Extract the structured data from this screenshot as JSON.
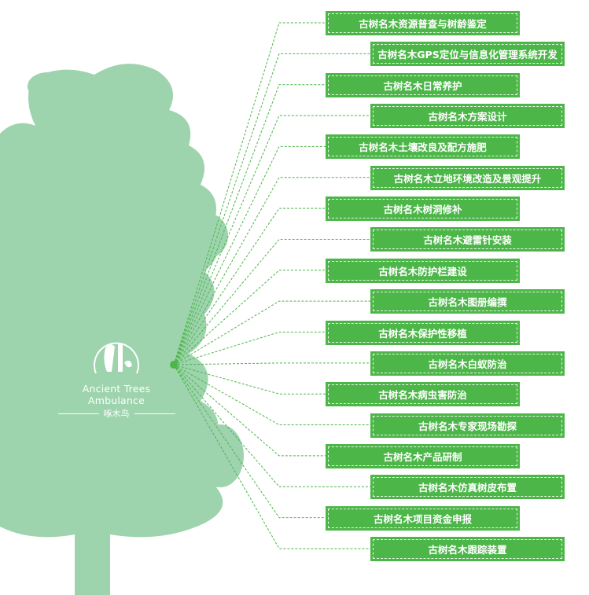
{
  "colors": {
    "tree": "#9dd3ad",
    "box": "#4cb648",
    "connector": "#4cb648"
  },
  "logo": {
    "english": "Ancient Trees Ambulance",
    "chinese": "啄木鸟",
    "icon": "woodpecker-on-tree-icon"
  },
  "items": [
    {
      "label": "古树名木资源普查与树龄鉴定"
    },
    {
      "label": "古树名木GPS定位与信息化管理系统开发"
    },
    {
      "label": "古树名木日常养护"
    },
    {
      "label": "古树名木方案设计"
    },
    {
      "label": "古树名木土壤改良及配方施肥"
    },
    {
      "label": "古树名木立地环境改造及景观提升"
    },
    {
      "label": "古树名木树洞修补"
    },
    {
      "label": "古树名木避雷针安装"
    },
    {
      "label": "古树名木防护栏建设"
    },
    {
      "label": "古树名木图册编撰"
    },
    {
      "label": "古树名木保护性移植"
    },
    {
      "label": "古树名木白蚁防治"
    },
    {
      "label": "古树名木病虫害防治"
    },
    {
      "label": "古树名木专家现场勘探"
    },
    {
      "label": "古树名木产品研制"
    },
    {
      "label": "古树名木仿真树皮布置"
    },
    {
      "label": "古树名木项目资金申报"
    },
    {
      "label": "古树名木跟踪装置"
    }
  ]
}
